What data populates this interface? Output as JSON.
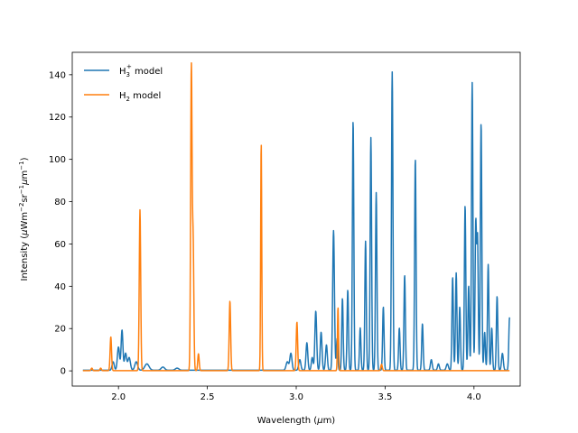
{
  "chart_data": {
    "type": "line",
    "xlabel_prefix": "Wavelength (",
    "xlabel_mu": "μ",
    "xlabel_suffix": "m)",
    "ylabel_prefix": "Intensity (",
    "ylabel_mu1": "μ",
    "ylabel_mid1": "Wm",
    "ylabel_sup1": "−2",
    "ylabel_mid2": "sr",
    "ylabel_sup2": "−1",
    "ylabel_mu2": "μ",
    "ylabel_mid3": "m",
    "ylabel_sup3": "−1",
    "ylabel_suffix": ")",
    "xlim": [
      1.74,
      4.26
    ],
    "ylim": [
      -7.2,
      150.6
    ],
    "xticks": [
      2.0,
      2.5,
      3.0,
      3.5,
      4.0
    ],
    "xtick_labels": [
      "2.0",
      "2.5",
      "3.0",
      "3.5",
      "4.0"
    ],
    "yticks": [
      0,
      20,
      40,
      60,
      80,
      100,
      120,
      140
    ],
    "ytick_labels": [
      "0",
      "20",
      "40",
      "60",
      "80",
      "100",
      "120",
      "140"
    ],
    "legend_position": "top-left",
    "grid": false,
    "series": [
      {
        "name_main": "H",
        "name_sub": "3",
        "name_sup": "+",
        "name_rest": " model",
        "color": "#1f77b4",
        "base": 0.3,
        "peaks": [
          [
            1.97,
            4,
            0.006
          ],
          [
            2.0,
            11,
            0.006
          ],
          [
            2.02,
            19,
            0.005
          ],
          [
            2.04,
            8,
            0.006
          ],
          [
            2.06,
            6,
            0.007
          ],
          [
            2.1,
            4,
            0.008
          ],
          [
            2.16,
            3,
            0.012
          ],
          [
            2.25,
            1.5,
            0.01
          ],
          [
            2.33,
            1,
            0.01
          ],
          [
            2.95,
            4,
            0.007
          ],
          [
            2.97,
            8,
            0.006
          ],
          [
            3.02,
            5,
            0.006
          ],
          [
            3.06,
            13,
            0.005
          ],
          [
            3.09,
            6,
            0.005
          ],
          [
            3.11,
            28,
            0.005
          ],
          [
            3.14,
            18,
            0.005
          ],
          [
            3.17,
            12,
            0.005
          ],
          [
            3.21,
            66,
            0.005
          ],
          [
            3.23,
            15,
            0.004
          ],
          [
            3.26,
            34,
            0.004
          ],
          [
            3.29,
            38,
            0.004
          ],
          [
            3.32,
            118,
            0.004
          ],
          [
            3.36,
            20,
            0.004
          ],
          [
            3.39,
            61,
            0.004
          ],
          [
            3.42,
            110,
            0.004
          ],
          [
            3.45,
            84,
            0.004
          ],
          [
            3.49,
            30,
            0.004
          ],
          [
            3.54,
            141,
            0.004
          ],
          [
            3.58,
            20,
            0.004
          ],
          [
            3.61,
            45,
            0.004
          ],
          [
            3.67,
            100,
            0.004
          ],
          [
            3.71,
            22,
            0.004
          ],
          [
            3.76,
            5,
            0.005
          ],
          [
            3.8,
            3,
            0.005
          ],
          [
            3.85,
            3,
            0.006
          ],
          [
            3.88,
            44,
            0.004
          ],
          [
            3.9,
            46,
            0.004
          ],
          [
            3.92,
            30,
            0.004
          ],
          [
            3.95,
            78,
            0.004
          ],
          [
            3.97,
            40,
            0.004
          ],
          [
            3.99,
            136,
            0.004
          ],
          [
            4.01,
            69,
            0.004
          ],
          [
            4.02,
            62,
            0.004
          ],
          [
            4.04,
            117,
            0.004
          ],
          [
            4.06,
            18,
            0.004
          ],
          [
            4.08,
            50,
            0.004
          ],
          [
            4.1,
            20,
            0.004
          ],
          [
            4.13,
            35,
            0.004
          ],
          [
            4.16,
            8,
            0.005
          ],
          [
            4.2,
            25,
            0.004
          ]
        ]
      },
      {
        "name_main": "H",
        "name_sub": "2",
        "name_sup": "",
        "name_rest": " model",
        "color": "#ff7f0e",
        "base": 0.1,
        "peaks": [
          [
            1.85,
            1.2,
            0.004
          ],
          [
            1.9,
            1.2,
            0.004
          ],
          [
            1.957,
            16,
            0.004
          ],
          [
            2.121,
            76,
            0.004
          ],
          [
            2.41,
            143,
            0.004
          ],
          [
            2.42,
            60,
            0.004
          ],
          [
            2.45,
            8,
            0.004
          ],
          [
            2.627,
            33,
            0.004
          ],
          [
            2.803,
            108,
            0.003
          ],
          [
            3.004,
            23,
            0.004
          ],
          [
            3.235,
            30,
            0.003
          ],
          [
            3.48,
            3,
            0.004
          ]
        ]
      }
    ]
  }
}
